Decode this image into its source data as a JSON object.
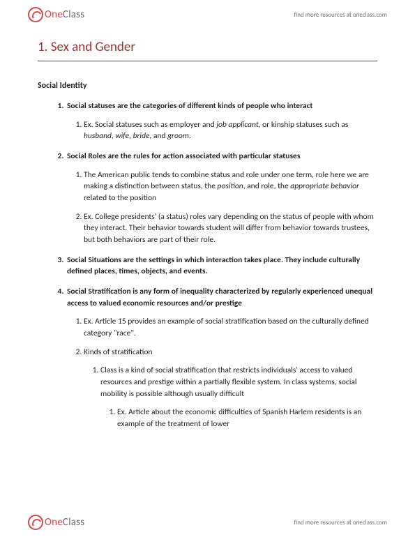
{
  "brand": {
    "part1": "One",
    "part2": "Class",
    "tagline": "find more resources at oneclass.com"
  },
  "title": "1.  Sex and Gender",
  "section_label": "Social Identity",
  "items": [
    {
      "text": "Social statuses are the categories of different kinds of people who interact",
      "children": [
        {
          "html": "Ex. Social statuses such as employer and <em>job applicant,</em> or kinship statuses such as <em>husband, wife, bride,</em> and <em>groom</em>."
        }
      ]
    },
    {
      "text": "Social Roles are the rules for action associated with particular statuses",
      "children": [
        {
          "html": "The American public tends to combine status and role under one term, role here we are making a distinction between status, the <em>position</em>, and role, the <em>appropriate behavior</em> related to the position"
        },
        {
          "html": "Ex. College presidents' (a status) roles vary depending on the status of people with whom they interact. Their behavior towards student will differ from behavior towards trustees, but both behaviors are part of their role."
        }
      ]
    },
    {
      "text": "Social Situations are the settings in which interaction takes place. They include culturally defined places, times, objects, and events."
    },
    {
      "text": "Social Stratification is any form of inequality characterized by regularly experienced unequal access to valued economic resources and/or prestige",
      "children": [
        {
          "html": "Ex. Article 15 provides an example of social stratification based on the culturally defined category \"race\"."
        },
        {
          "html": "Kinds of stratification",
          "children": [
            {
              "html": "Class is a kind of social stratification that restricts individuals' access to valued resources and prestige within a partially flexible system. In class systems, social mobility is possible although usually difficult",
              "children": [
                {
                  "html": "Ex. Article about the economic difficulties of Spanish Harlem residents is an example of the treatment of lower"
                }
              ]
            }
          ]
        }
      ]
    }
  ]
}
